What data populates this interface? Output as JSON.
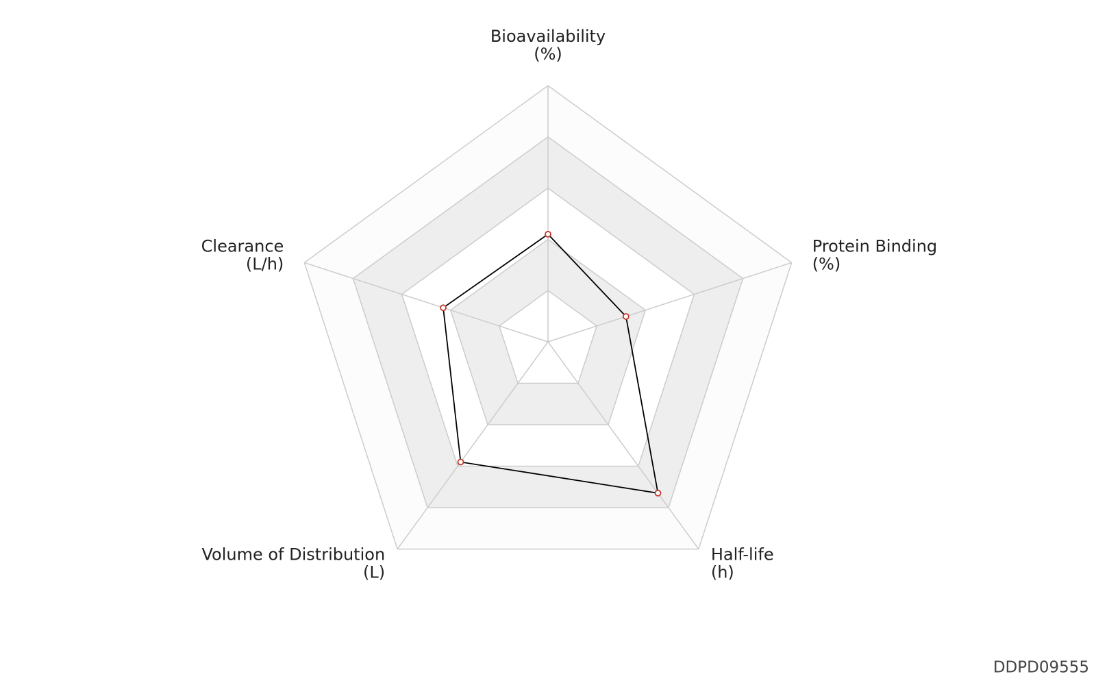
{
  "chart_data": {
    "type": "radar",
    "categories": [
      "Bioavailability",
      "Protein Binding",
      "Half-life",
      "Volume of Distribution",
      "Clearance"
    ],
    "units": [
      "(%)",
      "(%)",
      "(h)",
      "(L)",
      "(L/h)"
    ],
    "values": [
      0.42,
      0.32,
      0.73,
      0.58,
      0.43
    ],
    "rlim": [
      0,
      1
    ],
    "rticks": [
      0.2,
      0.4,
      0.6,
      0.8,
      1
    ],
    "color": "#000000",
    "marker_color": "#c0392b",
    "grid_color": "#cccccc",
    "band_colors": [
      "#ffffff",
      "#eeeeee"
    ]
  },
  "watermark": "DDPD09555"
}
